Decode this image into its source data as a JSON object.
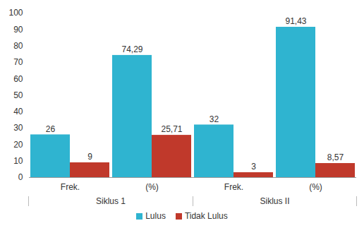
{
  "chart_data": {
    "type": "bar",
    "categories": [
      "Frek.",
      "(%)",
      "Frek.",
      "(%)"
    ],
    "category_groups": [
      "Siklus 1",
      "Siklus 1",
      "Siklus II",
      "Siklus II"
    ],
    "series": [
      {
        "name": "Lulus",
        "color": "#2fb4d0",
        "values": [
          26,
          74.29,
          32,
          91.43
        ],
        "value_labels": [
          "26",
          "74,29",
          "32",
          "91,43"
        ]
      },
      {
        "name": "Tidak Lulus",
        "color": "#c0392b",
        "values": [
          9,
          25.71,
          3,
          8.57
        ],
        "value_labels": [
          "9",
          "25,71",
          "3",
          "8,57"
        ]
      }
    ],
    "ylim": [
      0,
      100
    ],
    "yticks": [
      0,
      10,
      20,
      30,
      40,
      50,
      60,
      70,
      80,
      90,
      100
    ],
    "grid": false,
    "legend": "bottom",
    "data_labels": true
  }
}
